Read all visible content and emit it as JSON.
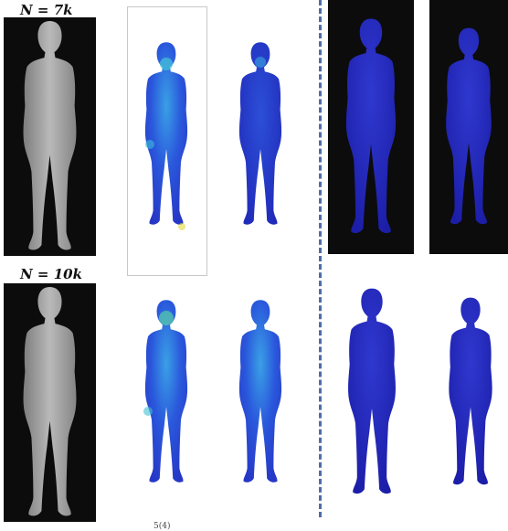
{
  "rows": [
    {
      "label": "N = 7k"
    },
    {
      "label": "N = 10k"
    }
  ],
  "caption": "5(4)",
  "colors": {
    "mesh_background": "#0c0c0c",
    "mesh_gray": "#a8a8a8",
    "heat_low": "#2a2fcf",
    "heat_mid": "#23b6d9",
    "heat_high": "#e8e23a",
    "divider": "#4c6da8"
  }
}
